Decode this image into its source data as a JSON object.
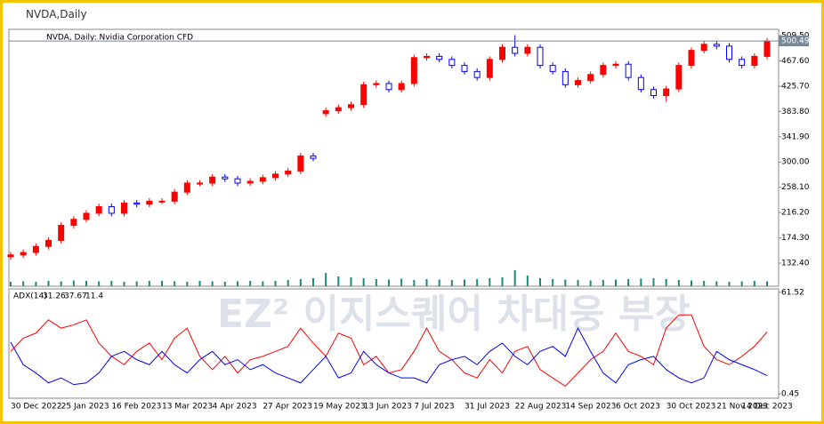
{
  "window": {
    "title": "NVDA,Daily"
  },
  "chart_data": [
    {
      "type": "candlestick",
      "title": "NVDA, Daily:  Nvidia Corporation CFD",
      "categories": [
        "30 Dec 2022",
        null,
        null,
        null,
        "25 Jan 2023",
        null,
        null,
        null,
        "16 Feb 2023",
        null,
        null,
        null,
        "13 Mar 2023",
        null,
        null,
        null,
        "4 Apr 2023",
        null,
        null,
        null,
        "27 Apr 2023",
        null,
        null,
        null,
        "19 May 2023",
        null,
        null,
        null,
        "13 Jun 2023",
        null,
        null,
        null,
        "7 Jul 2023",
        null,
        null,
        null,
        "31 Jul 2023",
        null,
        null,
        null,
        "22 Aug 2023",
        null,
        null,
        null,
        "14 Sep 2023",
        null,
        null,
        null,
        "6 Oct 2023",
        null,
        null,
        null,
        "30 Oct 2023",
        null,
        null,
        null,
        "21 Nov 2023",
        null,
        null,
        null,
        "14 Dec 2023"
      ],
      "open": [
        143,
        146,
        150,
        160,
        170,
        195,
        205,
        215,
        226,
        215,
        232,
        230,
        235,
        235,
        250,
        265,
        265,
        275,
        272,
        265,
        268,
        274,
        280,
        285,
        310,
        380,
        385,
        390,
        395,
        428,
        430,
        420,
        430,
        473,
        475,
        470,
        460,
        450,
        440,
        470,
        490,
        480,
        490,
        460,
        450,
        428,
        435,
        445,
        460,
        462,
        440,
        420,
        410,
        421,
        460,
        485,
        495,
        492,
        470,
        460,
        475
      ],
      "high": [
        151,
        155,
        165,
        175,
        200,
        210,
        220,
        231,
        231,
        237,
        237,
        240,
        240,
        255,
        270,
        270,
        280,
        280,
        277,
        273,
        279,
        285,
        290,
        315,
        315,
        390,
        395,
        400,
        433,
        435,
        435,
        435,
        478,
        480,
        480,
        475,
        465,
        455,
        475,
        495,
        510,
        495,
        495,
        465,
        455,
        440,
        450,
        465,
        467,
        467,
        445,
        425,
        426,
        465,
        490,
        500,
        500,
        497,
        475,
        480,
        505.49
      ],
      "low": [
        138,
        141,
        145,
        155,
        165,
        190,
        200,
        210,
        210,
        210,
        225,
        225,
        230,
        230,
        245,
        260,
        260,
        267,
        260,
        260,
        263,
        269,
        275,
        280,
        301,
        375,
        380,
        385,
        390,
        423,
        415,
        415,
        425,
        468,
        465,
        455,
        445,
        435,
        435,
        465,
        475,
        475,
        455,
        445,
        423,
        423,
        430,
        440,
        455,
        435,
        415,
        405,
        400,
        416,
        455,
        480,
        487,
        465,
        455,
        455,
        470
      ],
      "close": [
        146,
        150,
        160,
        170,
        195,
        205,
        215,
        226,
        215,
        232,
        230,
        235,
        235,
        250,
        265,
        265,
        275,
        272,
        265,
        268,
        274,
        280,
        285,
        310,
        306,
        385,
        390,
        395,
        428,
        430,
        420,
        430,
        473,
        475,
        470,
        460,
        450,
        440,
        470,
        490,
        480,
        490,
        460,
        450,
        428,
        435,
        445,
        460,
        462,
        440,
        420,
        410,
        421,
        460,
        485,
        495,
        492,
        470,
        460,
        475,
        500.49
      ],
      "volume": [
        10,
        11,
        10,
        12,
        11,
        13,
        12,
        11,
        12,
        10,
        11,
        12,
        12,
        11,
        10,
        12,
        11,
        10,
        11,
        12,
        11,
        12,
        14,
        16,
        18,
        30,
        22,
        20,
        18,
        16,
        15,
        17,
        14,
        16,
        15,
        14,
        15,
        16,
        18,
        20,
        36,
        24,
        18,
        16,
        15,
        14,
        13,
        14,
        15,
        16,
        17,
        18,
        16,
        14,
        13,
        12,
        11,
        10,
        11,
        12,
        11
      ],
      "up_color": "#ff0000",
      "down_color": "#0000ff",
      "current_price": {
        "value": 500.49,
        "label": "500.49"
      },
      "ylim": [
        94.1,
        519.8
      ],
      "yticks": [
        {
          "value": 509.5,
          "label": "509.50"
        },
        {
          "value": 467.6,
          "label": "467.60"
        },
        {
          "value": 425.7,
          "label": "425.70"
        },
        {
          "value": 383.8,
          "label": "383.80"
        },
        {
          "value": 341.9,
          "label": "341.90"
        },
        {
          "value": 300,
          "label": "300.00"
        },
        {
          "value": 258.1,
          "label": "258.10"
        },
        {
          "value": 216.2,
          "label": "216.20"
        },
        {
          "value": 174.3,
          "label": "174.30"
        },
        {
          "value": 132.4,
          "label": "132.40"
        }
      ]
    },
    {
      "type": "line",
      "title": "ADX(14)",
      "current": [
        31.26,
        37.67,
        11.4
      ],
      "watermark": "EZ² 이지스퀘어 차대웅 부장",
      "series": [
        {
          "color": "#ff0000",
          "values": [
            26,
            34,
            37,
            45,
            40,
            42,
            45,
            31,
            23,
            18,
            26,
            31,
            21,
            34,
            40,
            23,
            15,
            23,
            13,
            21,
            23,
            26,
            29,
            40,
            31,
            23,
            37,
            34,
            18,
            23,
            13,
            15,
            26,
            40,
            26,
            21,
            13,
            10,
            21,
            13,
            26,
            29,
            15,
            10,
            5,
            13,
            21,
            26,
            37,
            26,
            23,
            18,
            40,
            48,
            48,
            29,
            21,
            18,
            23,
            29,
            37.67
          ]
        },
        {
          "color": "#0000ff",
          "values": [
            31.5,
            18,
            13,
            7,
            10,
            6,
            7,
            13,
            23,
            26,
            21,
            18,
            26,
            18,
            13,
            21,
            26,
            18,
            21,
            15,
            18,
            13,
            10,
            7,
            15,
            23,
            10,
            13,
            26,
            18,
            13,
            10,
            10,
            7,
            18,
            21,
            23,
            18,
            26,
            31,
            23,
            18,
            26,
            29,
            23,
            40,
            26,
            13,
            7,
            18,
            21,
            23,
            15,
            10,
            7,
            10,
            26,
            21,
            18,
            15,
            11.4
          ]
        }
      ],
      "ylim": [
        -2.23,
        63.66
      ],
      "yticks": [
        {
          "value": 61.52,
          "label": "61.52"
        },
        {
          "value": 0.45,
          "label": "0.45"
        }
      ]
    }
  ]
}
